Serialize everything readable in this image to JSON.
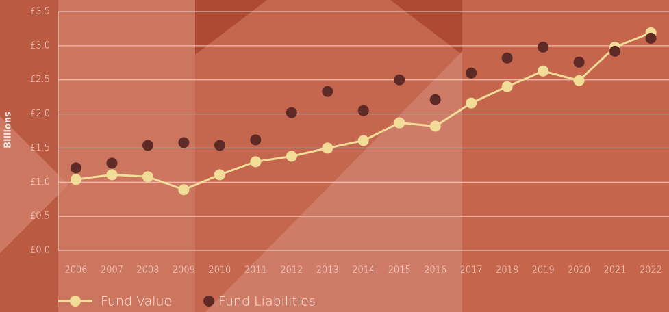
{
  "chart_data": {
    "type": "line",
    "y_label": "Billions",
    "categories": [
      "2006",
      "2007",
      "2008",
      "2009",
      "2010",
      "2011",
      "2012",
      "2013",
      "2014",
      "2015",
      "2016",
      "2017",
      "2018",
      "2019",
      "2020",
      "2021",
      "2022"
    ],
    "series": [
      {
        "name": "Fund Value",
        "color": "#f1dc98",
        "mode": "lines+markers",
        "values": [
          1.04,
          1.11,
          1.08,
          0.89,
          1.11,
          1.3,
          1.38,
          1.5,
          1.61,
          1.87,
          1.82,
          2.16,
          2.4,
          2.63,
          2.49,
          2.98,
          3.19
        ]
      },
      {
        "name": "Fund Liabilities",
        "color": "#5e2a26",
        "mode": "markers",
        "values": [
          1.21,
          1.28,
          1.54,
          1.58,
          1.54,
          1.62,
          2.02,
          2.33,
          2.05,
          2.5,
          2.21,
          2.6,
          2.82,
          2.98,
          2.76,
          2.92,
          3.11
        ]
      }
    ],
    "ylim": [
      0,
      3.5
    ],
    "yticks": [
      {
        "value": 0,
        "label": "£0.0"
      },
      {
        "value": 0.5,
        "label": "£0.5"
      },
      {
        "value": 1,
        "label": "£1.0"
      },
      {
        "value": 1.5,
        "label": "£1.5"
      },
      {
        "value": 2,
        "label": "£2.0"
      },
      {
        "value": 2.5,
        "label": "£2.5"
      },
      {
        "value": 3,
        "label": "£3.0"
      },
      {
        "value": 3.5,
        "label": "£3.5"
      }
    ],
    "grid": true
  }
}
